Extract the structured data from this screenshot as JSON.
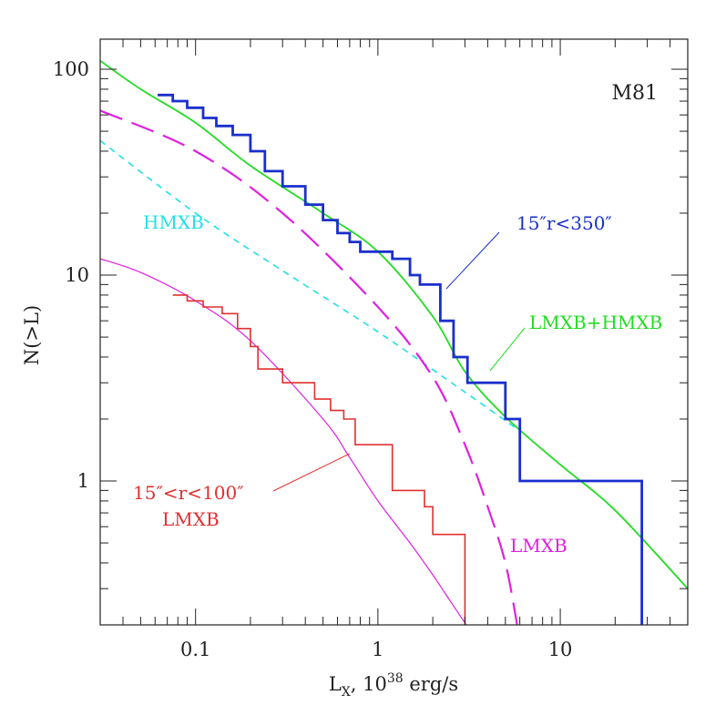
{
  "chart_data": {
    "type": "line",
    "xscale": "log",
    "yscale": "log",
    "xlim": [
      0.03,
      50
    ],
    "ylim": [
      0.2,
      140
    ],
    "grid": false,
    "text": {
      "galaxy": "M81",
      "ylabel": "N(>L)",
      "xlabel_main": "L",
      "xlabel_sub": "X",
      "xlabel_rest": ", 10",
      "xlabel_sup": "38",
      "xlabel_unit": " erg/s",
      "label_hmxb": "HMXB",
      "label_outer": "15″r<350″",
      "label_total": "LMXB+HMXB",
      "label_inner_1": "15″<r<100″",
      "label_inner_2": "LMXB",
      "label_lmxb_dashed": "LMXB"
    },
    "x_major_ticks": [
      {
        "value": 0.1,
        "label": "0.1"
      },
      {
        "value": 1,
        "label": "1"
      },
      {
        "value": 10,
        "label": "10"
      }
    ],
    "y_major_ticks": [
      {
        "value": 1,
        "label": "1"
      },
      {
        "value": 10,
        "label": "10"
      },
      {
        "value": 100,
        "label": "100"
      }
    ],
    "series": [
      {
        "name": "LMXB+HMXB",
        "style": "solid",
        "color": "#22dd22",
        "x": [
          0.03,
          0.05,
          0.1,
          0.2,
          0.5,
          1,
          2,
          3,
          5,
          10,
          20,
          50
        ],
        "y": [
          110,
          80,
          55,
          34,
          20,
          13,
          6.3,
          3.4,
          2.05,
          1.2,
          0.72,
          0.3
        ]
      },
      {
        "name": "HMXB",
        "style": "dashed",
        "color": "#22e0e8",
        "x": [
          0.03,
          0.1,
          0.3,
          1,
          3,
          6
        ],
        "y": [
          45,
          20,
          10.5,
          5.3,
          2.7,
          1.75
        ]
      },
      {
        "name": "LMXB",
        "style": "long-dashed",
        "color": "#e020e0",
        "x": [
          0.03,
          0.1,
          0.3,
          1,
          2,
          3,
          4,
          5,
          5.8
        ],
        "y": [
          63,
          40,
          20,
          7,
          3.2,
          1.5,
          0.75,
          0.4,
          0.2
        ]
      },
      {
        "name": "LMXB model (15″<r<100″)",
        "style": "solid",
        "color": "#e020e0",
        "x": [
          0.03,
          0.05,
          0.1,
          0.2,
          0.5,
          0.7,
          1,
          1.5,
          2,
          2.5,
          3.05
        ],
        "y": [
          12,
          10.3,
          7.5,
          4.8,
          2.0,
          1.3,
          0.8,
          0.5,
          0.35,
          0.26,
          0.2
        ]
      },
      {
        "name": "15″r<350″",
        "style": "step",
        "color": "#1a2fcc",
        "x": [
          0.062,
          0.075,
          0.09,
          0.11,
          0.13,
          0.16,
          0.2,
          0.24,
          0.3,
          0.4,
          0.5,
          0.6,
          0.7,
          0.8,
          1.2,
          1.5,
          1.7,
          2.2,
          2.6,
          3.1,
          5,
          6,
          28,
          28
        ],
        "y": [
          75,
          70,
          65,
          58,
          53,
          48,
          40,
          32,
          27,
          22,
          18.5,
          16,
          14.5,
          13,
          12,
          10,
          9,
          6,
          4,
          3,
          2,
          1,
          1,
          0.2
        ]
      },
      {
        "name": "15″<r<100″ LMXB",
        "style": "step",
        "color": "#e03030",
        "x": [
          0.075,
          0.09,
          0.11,
          0.14,
          0.17,
          0.2,
          0.22,
          0.3,
          0.45,
          0.55,
          0.65,
          0.75,
          1.2,
          1.8,
          2.0,
          3.0,
          3.0
        ],
        "y": [
          8,
          7.5,
          7,
          6.5,
          5.5,
          4.5,
          3.5,
          3,
          2.5,
          2.2,
          2,
          1.5,
          0.9,
          0.75,
          0.55,
          0.28,
          0.2
        ]
      }
    ]
  }
}
